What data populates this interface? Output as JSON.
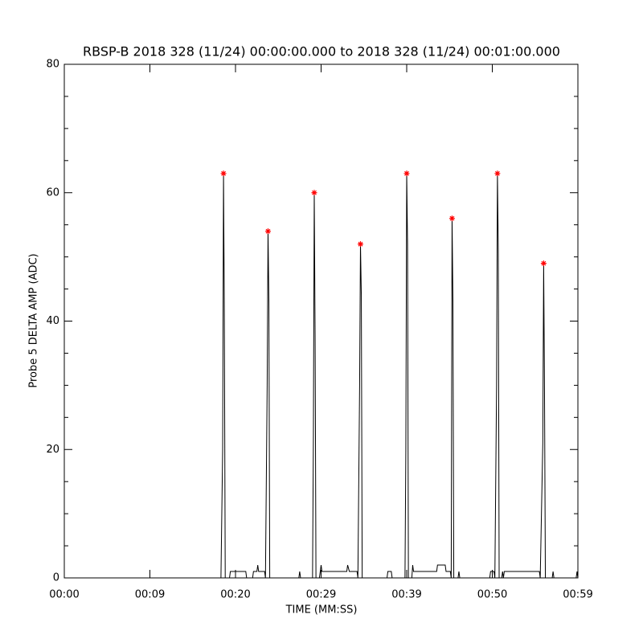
{
  "chart_data": {
    "type": "line",
    "title": "RBSP-B 2018 328 (11/24) 00:00:00.000 to 2018 328 (11/24) 00:01:00.000",
    "x_label": "TIME (MM:SS)",
    "y_label": "Probe 5 DELTA AMP (ADC)",
    "xlim": [
      0,
      60
    ],
    "ylim": [
      0,
      80
    ],
    "xticks": [
      {
        "value": 0,
        "label": "00:00"
      },
      {
        "value": 10,
        "label": "00:09"
      },
      {
        "value": 20,
        "label": "00:20"
      },
      {
        "value": 30,
        "label": "00:29"
      },
      {
        "value": 40,
        "label": "00:39"
      },
      {
        "value": 50,
        "label": "00:50"
      },
      {
        "value": 60,
        "label": "00:59"
      }
    ],
    "yticks": [
      0,
      20,
      40,
      60,
      80
    ],
    "yminorticks": [
      5,
      10,
      15,
      25,
      30,
      35,
      45,
      50,
      55,
      65,
      70,
      75
    ],
    "series": [
      {
        "color": "#000000",
        "x": [
          0,
          18.3,
          18.5,
          18.6,
          18.7,
          18.8,
          19.3,
          19.4,
          21.2,
          21.3,
          22.0,
          22.1,
          22.5,
          22.6,
          22.7,
          23.4,
          23.5,
          23.7,
          23.8,
          23.9,
          24.0,
          27.4,
          27.5,
          27.6,
          29.0,
          29.1,
          29.2,
          29.3,
          29.4,
          29.8,
          29.9,
          30.0,
          30.1,
          33.0,
          33.1,
          33.3,
          34.2,
          34.3,
          34.5,
          34.6,
          34.7,
          34.8,
          37.7,
          37.8,
          38.2,
          38.3,
          39.8,
          39.9,
          40.0,
          40.1,
          40.2,
          40.6,
          40.7,
          40.8,
          43.5,
          43.6,
          44.5,
          44.6,
          45.1,
          45.2,
          45.3,
          45.4,
          45.5,
          46.0,
          46.1,
          46.2,
          49.7,
          49.8,
          50.2,
          50.3,
          50.5,
          50.6,
          50.7,
          50.8,
          51.1,
          51.2,
          51.3,
          51.4,
          55.5,
          55.6,
          55.9,
          56.0,
          56.1,
          56.2,
          57.0,
          57.1,
          57.2,
          59.8,
          59.9,
          60
        ],
        "values": [
          0,
          0,
          20,
          63,
          40,
          0,
          0,
          1,
          1,
          0,
          0,
          1,
          1,
          2,
          1,
          1,
          0,
          30,
          54,
          43,
          0,
          0,
          1,
          0,
          0,
          22,
          60,
          38,
          0,
          0,
          1,
          2,
          1,
          1,
          2,
          1,
          1,
          0,
          30,
          52,
          44,
          0,
          0,
          1,
          1,
          0,
          0,
          20,
          63,
          52,
          0,
          0,
          2,
          1,
          1,
          2,
          2,
          1,
          1,
          0,
          56,
          43,
          0,
          0,
          1,
          0,
          0,
          1,
          1,
          0,
          30,
          63,
          51,
          0,
          0,
          1,
          0,
          1,
          1,
          0,
          21,
          49,
          29,
          0,
          0,
          1,
          0,
          0,
          1,
          0
        ]
      },
      {
        "type": "scatter",
        "color": "#ff0000",
        "x": [
          18.6,
          23.8,
          29.2,
          34.6,
          40.0,
          45.3,
          50.6,
          56.0
        ],
        "values": [
          63,
          54,
          60,
          52,
          63,
          56,
          63,
          49
        ]
      }
    ]
  }
}
